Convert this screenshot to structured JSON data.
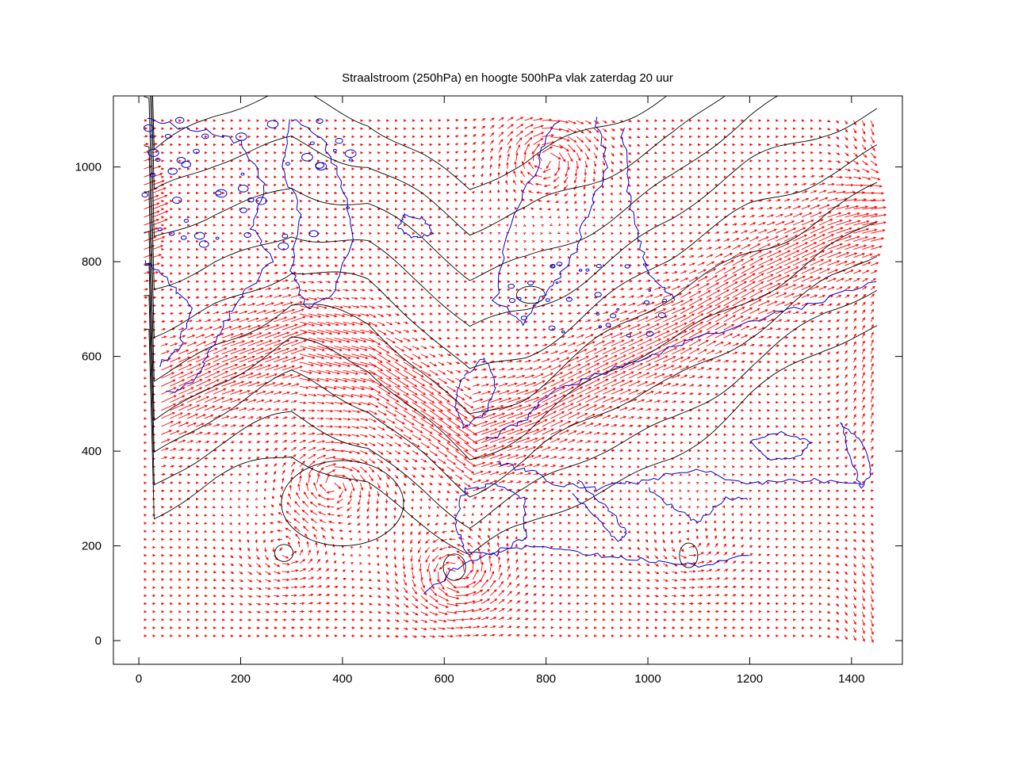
{
  "chart_data": {
    "type": "vector-field-map",
    "title": "Straalstroom (250hPa) en hoogte 500hPa vlak zaterdag 20 uur",
    "xlim": [
      -50,
      1500
    ],
    "ylim": [
      -50,
      1150
    ],
    "x_ticks": [
      0,
      200,
      400,
      600,
      800,
      1000,
      1200,
      1400
    ],
    "y_ticks": [
      0,
      200,
      400,
      600,
      800,
      1000
    ],
    "grid": false,
    "legend": "none",
    "colors": {
      "wind_vectors": "#ff0000",
      "height_contours": "#000000",
      "coastlines": "#0000cc",
      "frame": "#000000"
    },
    "field_extent": {
      "x": [
        10,
        1450
      ],
      "y": [
        10,
        1110
      ]
    },
    "jet_axis": [
      [
        30,
        500
      ],
      [
        150,
        570
      ],
      [
        300,
        640
      ],
      [
        450,
        590
      ],
      [
        560,
        500
      ],
      [
        650,
        420
      ],
      [
        760,
        470
      ],
      [
        900,
        560
      ],
      [
        1050,
        650
      ],
      [
        1200,
        760
      ],
      [
        1350,
        850
      ],
      [
        1450,
        900
      ]
    ],
    "vortices": [
      {
        "x": 380,
        "y": 330,
        "sense": "anticyclonic",
        "strength": 0.8
      },
      {
        "x": 620,
        "y": 140,
        "sense": "cyclonic",
        "strength": 1.0
      },
      {
        "x": 290,
        "y": 190,
        "sense": "cyclonic",
        "strength": 0.5
      },
      {
        "x": 800,
        "y": 1020,
        "sense": "anticyclonic",
        "strength": 0.9
      },
      {
        "x": 1080,
        "y": 200,
        "sense": "cyclonic",
        "strength": 0.4
      }
    ],
    "contour_levels_y": [
      1050,
      960,
      870,
      780,
      700,
      620,
      540,
      470,
      400,
      330
    ],
    "closed_contours": [
      {
        "x": 285,
        "y": 185,
        "rx": 18,
        "ry": 18
      },
      {
        "x": 620,
        "y": 155,
        "rx": 22,
        "ry": 28
      },
      {
        "x": 400,
        "y": 290,
        "rx": 120,
        "ry": 90
      },
      {
        "x": 770,
        "y": 730,
        "rx": 28,
        "ry": 18
      },
      {
        "x": 1080,
        "y": 180,
        "rx": 18,
        "ry": 26
      }
    ]
  }
}
